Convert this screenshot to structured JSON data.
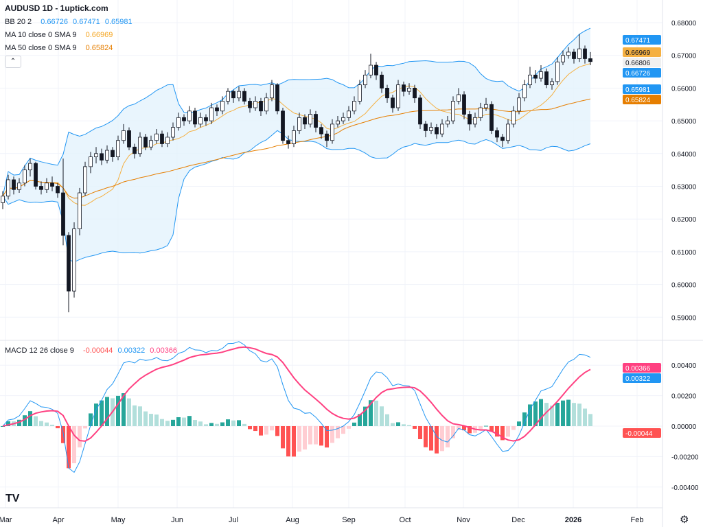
{
  "header": {
    "title": "AUDUSD 1D - 1uptick.com"
  },
  "legend": {
    "bb": {
      "label": "BB 20 2",
      "basis": "0.66726",
      "upper": "0.67471",
      "lower": "0.65981"
    },
    "ma10": {
      "label": "MA 10 close 0 SMA 9",
      "value": "0.66969"
    },
    "ma50": {
      "label": "MA 50 close 0 SMA 9",
      "value": "0.65824"
    },
    "macd": {
      "label": "MACD 12 26 close 9",
      "hist": "-0.00044",
      "macd": "0.00322",
      "signal": "0.00366"
    }
  },
  "icons": {
    "collapse": "chevron-up-icon",
    "logo": "tradingview-logo",
    "settings": "gear-icon"
  },
  "logo_text": "TV",
  "colors": {
    "bb": "#2196f3",
    "bb_fill": "#e3f2fd",
    "ma10": "#f5b041",
    "ma50": "#e67e00",
    "macd": "#2196f3",
    "signal": "#ff4081",
    "hist_up": "#26a69a",
    "hist_up_weak": "#b2dfdb",
    "hist_down": "#ff5252",
    "hist_down_weak": "#ffcdd2",
    "up": "#ffffff",
    "down": "#131722"
  },
  "chart_data": {
    "type": "candlestick",
    "symbol": "AUDUSD",
    "interval": "1D",
    "price_axis": {
      "ticks": [
        "0.68000",
        "0.67000",
        "0.66000",
        "0.65000",
        "0.64000",
        "0.63000",
        "0.62000",
        "0.61000",
        "0.60000",
        "0.59000"
      ],
      "range": [
        0.585,
        0.683
      ]
    },
    "macd_axis": {
      "ticks": [
        "0.00400",
        "0.00200",
        "0.00000",
        "-0.00200",
        "-0.00400"
      ],
      "range": [
        -0.0049,
        0.0045
      ]
    },
    "time_axis": [
      "Mar",
      "Apr",
      "May",
      "Jun",
      "Jul",
      "Aug",
      "Sep",
      "Oct",
      "Nov",
      "Dec",
      "2026",
      "Feb"
    ],
    "price_labels": {
      "bb_upper": "0.67471",
      "ma10": "0.66969",
      "last": "0.66806",
      "bb_basis": "0.66726",
      "bb_lower": "0.65981",
      "ma50": "0.65824",
      "signal": "0.00366",
      "macd": "0.00322",
      "hist": "-0.00044"
    },
    "grid": true,
    "candles_ohlc": [
      [
        0.625,
        0.6285,
        0.623,
        0.627
      ],
      [
        0.627,
        0.6335,
        0.626,
        0.632
      ],
      [
        0.632,
        0.633,
        0.6275,
        0.629
      ],
      [
        0.629,
        0.6325,
        0.628,
        0.631
      ],
      [
        0.631,
        0.6365,
        0.63,
        0.635
      ],
      [
        0.635,
        0.6385,
        0.633,
        0.637
      ],
      [
        0.637,
        0.6375,
        0.629,
        0.63
      ],
      [
        0.63,
        0.6315,
        0.6275,
        0.629
      ],
      [
        0.629,
        0.6325,
        0.628,
        0.631
      ],
      [
        0.631,
        0.633,
        0.6285,
        0.63
      ],
      [
        0.63,
        0.631,
        0.6265,
        0.628
      ],
      [
        0.628,
        0.6385,
        0.612,
        0.615
      ],
      [
        0.615,
        0.616,
        0.5915,
        0.598
      ],
      [
        0.598,
        0.619,
        0.596,
        0.617
      ],
      [
        0.617,
        0.6295,
        0.615,
        0.628
      ],
      [
        0.628,
        0.6375,
        0.627,
        0.636
      ],
      [
        0.636,
        0.6405,
        0.634,
        0.639
      ],
      [
        0.639,
        0.642,
        0.637,
        0.64
      ],
      [
        0.64,
        0.6415,
        0.6365,
        0.638
      ],
      [
        0.638,
        0.6425,
        0.637,
        0.641
      ],
      [
        0.641,
        0.642,
        0.6375,
        0.639
      ],
      [
        0.639,
        0.6455,
        0.638,
        0.644
      ],
      [
        0.644,
        0.649,
        0.643,
        0.647
      ],
      [
        0.647,
        0.648,
        0.641,
        0.642
      ],
      [
        0.642,
        0.643,
        0.6385,
        0.64
      ],
      [
        0.64,
        0.6465,
        0.639,
        0.645
      ],
      [
        0.645,
        0.646,
        0.641,
        0.642
      ],
      [
        0.642,
        0.6455,
        0.641,
        0.644
      ],
      [
        0.644,
        0.6475,
        0.643,
        0.646
      ],
      [
        0.646,
        0.647,
        0.642,
        0.643
      ],
      [
        0.643,
        0.6465,
        0.642,
        0.645
      ],
      [
        0.645,
        0.6495,
        0.644,
        0.648
      ],
      [
        0.648,
        0.6525,
        0.647,
        0.651
      ],
      [
        0.651,
        0.652,
        0.6485,
        0.65
      ],
      [
        0.65,
        0.6545,
        0.649,
        0.653
      ],
      [
        0.653,
        0.654,
        0.648,
        0.649
      ],
      [
        0.649,
        0.6525,
        0.648,
        0.651
      ],
      [
        0.651,
        0.652,
        0.6485,
        0.65
      ],
      [
        0.65,
        0.6555,
        0.649,
        0.654
      ],
      [
        0.654,
        0.655,
        0.6515,
        0.653
      ],
      [
        0.653,
        0.6575,
        0.652,
        0.656
      ],
      [
        0.656,
        0.66,
        0.655,
        0.659
      ],
      [
        0.659,
        0.6595,
        0.6555,
        0.657
      ],
      [
        0.657,
        0.6605,
        0.656,
        0.659
      ],
      [
        0.659,
        0.66,
        0.655,
        0.656
      ],
      [
        0.656,
        0.657,
        0.6525,
        0.654
      ],
      [
        0.654,
        0.6575,
        0.653,
        0.656
      ],
      [
        0.656,
        0.657,
        0.6515,
        0.653
      ],
      [
        0.653,
        0.6585,
        0.652,
        0.657
      ],
      [
        0.657,
        0.6625,
        0.656,
        0.661
      ],
      [
        0.661,
        0.6615,
        0.652,
        0.653
      ],
      [
        0.653,
        0.654,
        0.643,
        0.644
      ],
      [
        0.644,
        0.6455,
        0.6415,
        0.643
      ],
      [
        0.643,
        0.6485,
        0.642,
        0.647
      ],
      [
        0.647,
        0.6525,
        0.646,
        0.651
      ],
      [
        0.651,
        0.652,
        0.6475,
        0.649
      ],
      [
        0.649,
        0.6535,
        0.648,
        0.652
      ],
      [
        0.652,
        0.653,
        0.6465,
        0.648
      ],
      [
        0.648,
        0.649,
        0.6445,
        0.646
      ],
      [
        0.646,
        0.647,
        0.642,
        0.644
      ],
      [
        0.644,
        0.6505,
        0.643,
        0.649
      ],
      [
        0.649,
        0.6515,
        0.648,
        0.65
      ],
      [
        0.65,
        0.6525,
        0.649,
        0.651
      ],
      [
        0.651,
        0.6545,
        0.65,
        0.653
      ],
      [
        0.653,
        0.6575,
        0.652,
        0.656
      ],
      [
        0.656,
        0.6625,
        0.655,
        0.661
      ],
      [
        0.661,
        0.6655,
        0.66,
        0.664
      ],
      [
        0.664,
        0.6705,
        0.663,
        0.667
      ],
      [
        0.667,
        0.668,
        0.6625,
        0.664
      ],
      [
        0.664,
        0.665,
        0.6585,
        0.66
      ],
      [
        0.66,
        0.661,
        0.6555,
        0.657
      ],
      [
        0.657,
        0.658,
        0.6525,
        0.654
      ],
      [
        0.654,
        0.6625,
        0.653,
        0.661
      ],
      [
        0.661,
        0.662,
        0.6575,
        0.659
      ],
      [
        0.659,
        0.6615,
        0.658,
        0.66
      ],
      [
        0.66,
        0.661,
        0.6555,
        0.657
      ],
      [
        0.657,
        0.658,
        0.6475,
        0.649
      ],
      [
        0.649,
        0.65,
        0.645,
        0.647
      ],
      [
        0.647,
        0.6495,
        0.646,
        0.648
      ],
      [
        0.648,
        0.649,
        0.6445,
        0.646
      ],
      [
        0.646,
        0.6505,
        0.645,
        0.649
      ],
      [
        0.649,
        0.6515,
        0.648,
        0.65
      ],
      [
        0.65,
        0.6575,
        0.649,
        0.656
      ],
      [
        0.656,
        0.66,
        0.655,
        0.658
      ],
      [
        0.658,
        0.659,
        0.6505,
        0.652
      ],
      [
        0.652,
        0.653,
        0.647,
        0.649
      ],
      [
        0.649,
        0.6525,
        0.648,
        0.651
      ],
      [
        0.651,
        0.6555,
        0.65,
        0.654
      ],
      [
        0.654,
        0.657,
        0.653,
        0.655
      ],
      [
        0.655,
        0.656,
        0.646,
        0.647
      ],
      [
        0.647,
        0.648,
        0.6435,
        0.645
      ],
      [
        0.645,
        0.646,
        0.642,
        0.644
      ],
      [
        0.644,
        0.6505,
        0.643,
        0.649
      ],
      [
        0.649,
        0.6545,
        0.648,
        0.653
      ],
      [
        0.653,
        0.6585,
        0.652,
        0.657
      ],
      [
        0.657,
        0.6625,
        0.656,
        0.661
      ],
      [
        0.661,
        0.6665,
        0.66,
        0.664
      ],
      [
        0.664,
        0.6655,
        0.6615,
        0.663
      ],
      [
        0.663,
        0.667,
        0.662,
        0.665
      ],
      [
        0.665,
        0.666,
        0.66,
        0.661
      ],
      [
        0.661,
        0.663,
        0.6595,
        0.662
      ],
      [
        0.662,
        0.6695,
        0.661,
        0.668
      ],
      [
        0.668,
        0.6715,
        0.667,
        0.67
      ],
      [
        0.67,
        0.6725,
        0.669,
        0.671
      ],
      [
        0.671,
        0.672,
        0.6675,
        0.669
      ],
      [
        0.669,
        0.6765,
        0.668,
        0.672
      ],
      [
        0.672,
        0.673,
        0.6675,
        0.669
      ],
      [
        0.669,
        0.671,
        0.667,
        0.6681
      ]
    ]
  }
}
